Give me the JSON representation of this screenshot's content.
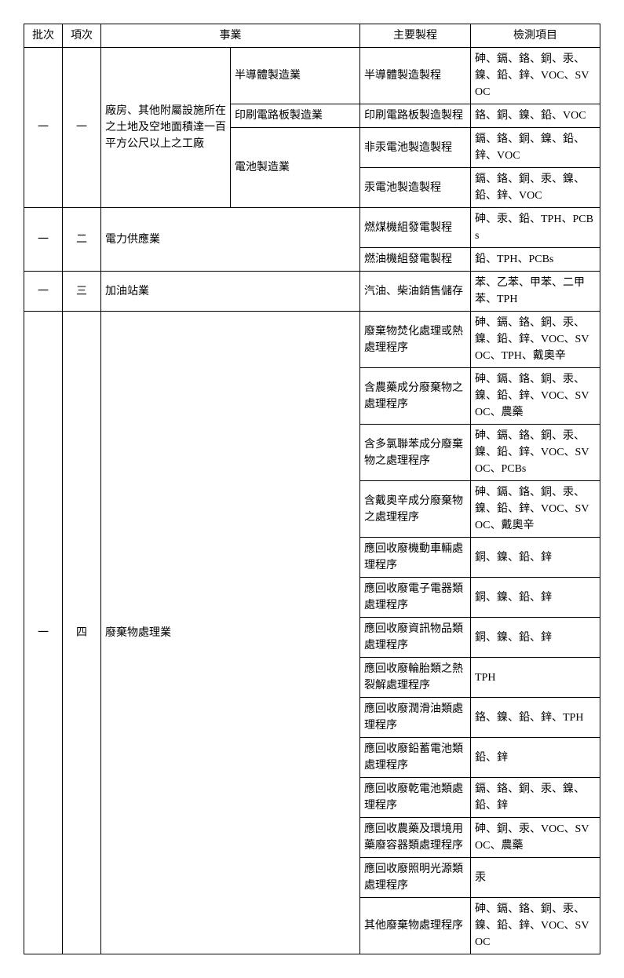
{
  "headers": {
    "batch": "批次",
    "item": "項次",
    "business": "事業",
    "process": "主要製程",
    "testItems": "檢測項目"
  },
  "rows": [
    {
      "batch": "一",
      "item": "一",
      "biz1": "廠房、其他附屬設施所在之土地及空地面積達一百平方公尺以上之工廠",
      "biz2": "半導體製造業",
      "process": "半導體製造製程",
      "test": "砷、鎘、鉻、銅、汞、鎳、鉛、鋅、VOC、SVOC"
    },
    {
      "biz2": "印刷電路板製造業",
      "process": "印刷電路板製造製程",
      "test": "鉻、銅、鎳、鉛、VOC"
    },
    {
      "biz2": "電池製造業",
      "process": "非汞電池製造製程",
      "test": "鎘、鉻、銅、鎳、鉛、鋅、VOC"
    },
    {
      "process": "汞電池製造製程",
      "test": "鎘、鉻、銅、汞、鎳、鉛、鋅、VOC"
    },
    {
      "batch": "一",
      "item": "二",
      "biz": "電力供應業",
      "process": "燃煤機組發電製程",
      "test": "砷、汞、鉛、TPH、PCBs"
    },
    {
      "process": "燃油機組發電製程",
      "test": "鉛、TPH、PCBs"
    },
    {
      "batch": "一",
      "item": "三",
      "biz": "加油站業",
      "process": "汽油、柴油銷售儲存",
      "test": "苯、乙苯、甲苯、二甲苯、TPH"
    },
    {
      "batch": "一",
      "item": "四",
      "biz": "廢棄物處理業",
      "process": "廢棄物焚化處理或熱處理程序",
      "test": "砷、鎘、鉻、銅、汞、鎳、鉛、鋅、VOC、SVOC、TPH、戴奧辛"
    },
    {
      "process": "含農藥成分廢棄物之處理程序",
      "test": "砷、鎘、鉻、銅、汞、鎳、鉛、鋅、VOC、SVOC、農藥"
    },
    {
      "process": "含多氯聯苯成分廢棄物之處理程序",
      "test": "砷、鎘、鉻、銅、汞、鎳、鉛、鋅、VOC、SVOC、PCBs"
    },
    {
      "process": "含戴奧辛成分廢棄物之處理程序",
      "test": "砷、鎘、鉻、銅、汞、鎳、鉛、鋅、VOC、SVOC、戴奧辛"
    },
    {
      "process": "應回收廢機動車輛處理程序",
      "test": "銅、鎳、鉛、鋅"
    },
    {
      "process": "應回收廢電子電器類處理程序",
      "test": "銅、鎳、鉛、鋅"
    },
    {
      "process": "應回收廢資訊物品類處理程序",
      "test": "銅、鎳、鉛、鋅"
    },
    {
      "process": "應回收廢輪胎類之熱裂解處理程序",
      "test": "TPH"
    },
    {
      "process": "應回收廢潤滑油類處理程序",
      "test": "鉻、鎳、鉛、鋅、TPH"
    },
    {
      "process": "應回收廢鉛蓄電池類處理程序",
      "test": "鉛、鋅"
    },
    {
      "process": "應回收廢乾電池類處理程序",
      "test": "鎘、鉻、銅、汞、鎳、鉛、鋅"
    },
    {
      "process": "應回收農藥及環境用藥廢容器類處理程序",
      "test": "砷、銅、汞、VOC、SVOC、農藥"
    },
    {
      "process": "應回收廢照明光源類處理程序",
      "test": "汞"
    },
    {
      "process": "其他廢棄物處理程序",
      "test": "砷、鎘、鉻、銅、汞、鎳、鉛、鋅、VOC、SVOC"
    }
  ]
}
